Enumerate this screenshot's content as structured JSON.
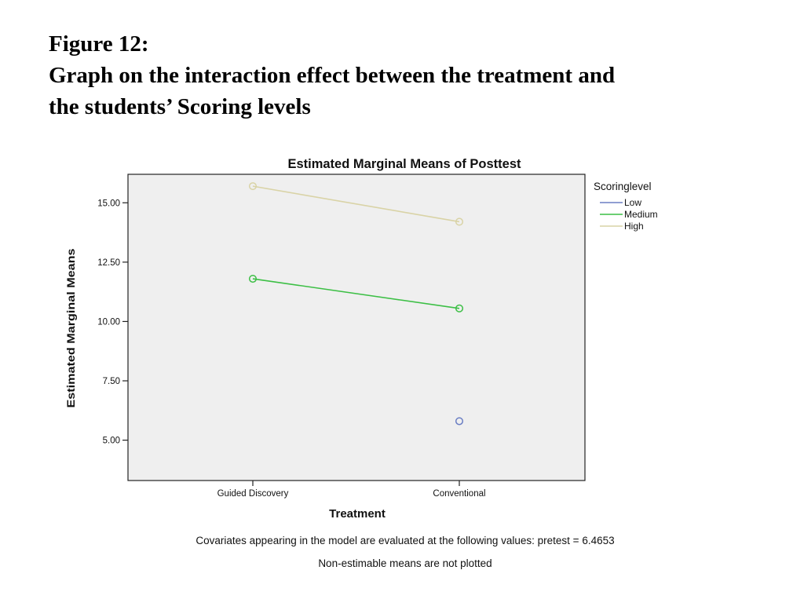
{
  "figure": {
    "label": "Figure 12:",
    "caption_line1": "Graph on the interaction effect between the treatment and",
    "caption_line2": "the students’ Scoring levels"
  },
  "chart_data": {
    "type": "line",
    "title": "Estimated Marginal Means of Posttest",
    "xlabel": "Treatment",
    "ylabel": "Estimated Marginal Means",
    "categories": [
      "Guided Discovery",
      "Conventional"
    ],
    "ylim": [
      3.3,
      16.2
    ],
    "yticks": [
      5.0,
      7.5,
      10.0,
      12.5,
      15.0
    ],
    "ytick_labels": [
      "5.00",
      "7.50",
      "10.00",
      "12.50",
      "15.00"
    ],
    "grid": false,
    "legend": {
      "title": "Scoringlevel",
      "placement": "right-top"
    },
    "series": [
      {
        "name": "Low",
        "color": "#6b7fc4",
        "values": [
          null,
          5.8
        ]
      },
      {
        "name": "Medium",
        "color": "#3cbf45",
        "values": [
          11.8,
          10.55
        ]
      },
      {
        "name": "High",
        "color": "#d9d3a6",
        "values": [
          15.7,
          14.2
        ]
      }
    ],
    "plot_background": "#efefef",
    "footnotes": [
      "Covariates appearing in the model are evaluated at the following values: pretest = 6.4653",
      "Non-estimable means are not plotted"
    ]
  }
}
